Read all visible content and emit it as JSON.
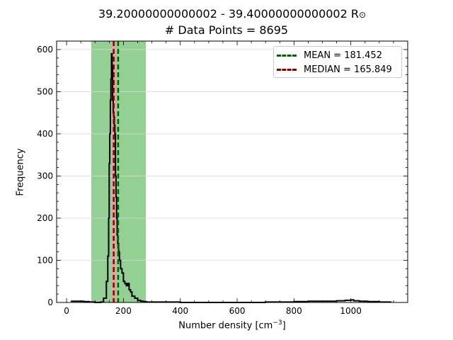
{
  "title": {
    "line1_prefix": "39.20000000000002 - 39.40000000000002 R",
    "line1_symbol": "⊙",
    "line2": "# Data Points = 8695"
  },
  "xlabel": {
    "text": "Number density [cm",
    "sup": "−3",
    "suffix": "]"
  },
  "ylabel": "Frequency",
  "legend": {
    "mean_label": "MEAN = 181.452",
    "median_label": "MEDIAN = 165.849"
  },
  "colors": {
    "histogram": "#000000",
    "band_outer": "#5ab55a",
    "band_inner": "#d4a8a0",
    "mean": "#006400",
    "median": "#8b0000",
    "grid": "#d9d9d9"
  },
  "chart_data": {
    "type": "histogram",
    "xlim": [
      -35,
      1200
    ],
    "ylim": [
      0,
      620
    ],
    "xticks": [
      0,
      200,
      400,
      600,
      800,
      1000
    ],
    "yticks": [
      0,
      100,
      200,
      300,
      400,
      500,
      600
    ],
    "grid": "horizontal",
    "legend_position": "top-right",
    "mean": 181.452,
    "median": 165.849,
    "band_outer": [
      87,
      279
    ],
    "band_inner": [
      158,
      175
    ],
    "histogram": {
      "x": [
        15,
        40,
        60,
        80,
        100,
        120,
        130,
        140,
        145,
        148,
        150,
        152,
        154,
        156,
        158,
        160,
        162,
        164,
        166,
        168,
        170,
        172,
        174,
        176,
        178,
        180,
        183,
        186,
        190,
        195,
        200,
        205,
        210,
        215,
        220,
        225,
        230,
        240,
        250,
        260,
        270,
        280,
        300,
        350,
        400,
        500,
        600,
        700,
        800,
        850,
        900,
        950,
        980,
        1000,
        1010,
        1030,
        1060,
        1100,
        1140
      ],
      "y": [
        3,
        3,
        2,
        1,
        0,
        1,
        10,
        50,
        110,
        200,
        330,
        400,
        480,
        530,
        590,
        560,
        480,
        450,
        440,
        420,
        400,
        300,
        250,
        200,
        160,
        140,
        120,
        100,
        80,
        70,
        50,
        45,
        40,
        45,
        30,
        25,
        15,
        10,
        5,
        3,
        2,
        1,
        1,
        1,
        0,
        0,
        0,
        1,
        2,
        3,
        3,
        4,
        5,
        6,
        4,
        3,
        2,
        1,
        0
      ]
    }
  }
}
